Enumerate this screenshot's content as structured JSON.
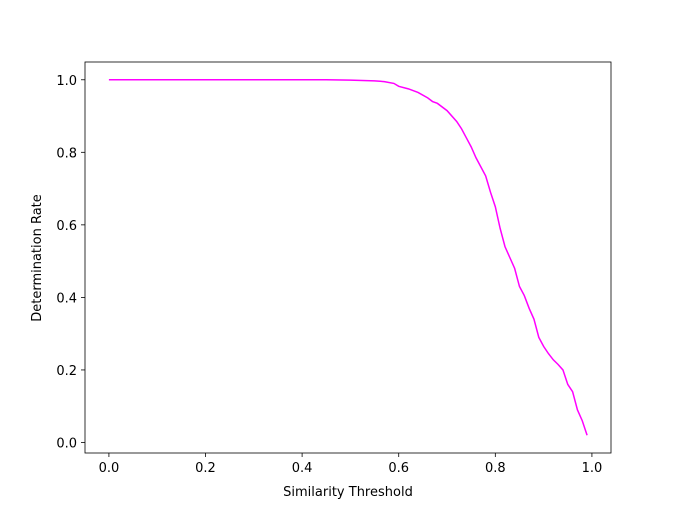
{
  "chart_data": {
    "type": "line",
    "x_label": "Similarity Threshold",
    "y_label": "Determination Rate",
    "x": [
      0.0,
      0.1,
      0.2,
      0.3,
      0.4,
      0.45,
      0.5,
      0.55,
      0.57,
      0.59,
      0.6,
      0.62,
      0.64,
      0.66,
      0.67,
      0.68,
      0.7,
      0.72,
      0.73,
      0.74,
      0.75,
      0.76,
      0.78,
      0.79,
      0.8,
      0.81,
      0.82,
      0.83,
      0.84,
      0.85,
      0.86,
      0.87,
      0.88,
      0.89,
      0.9,
      0.91,
      0.92,
      0.93,
      0.94,
      0.95,
      0.96,
      0.97,
      0.98,
      0.99
    ],
    "series": [
      {
        "color": "#ff00ff",
        "values": [
          1.0,
          1.0,
          1.0,
          1.0,
          1.0,
          1.0,
          0.999,
          0.997,
          0.995,
          0.99,
          0.982,
          0.975,
          0.965,
          0.95,
          0.94,
          0.935,
          0.915,
          0.885,
          0.865,
          0.84,
          0.815,
          0.785,
          0.735,
          0.69,
          0.65,
          0.59,
          0.54,
          0.51,
          0.48,
          0.43,
          0.405,
          0.37,
          0.34,
          0.29,
          0.265,
          0.245,
          0.228,
          0.215,
          0.2,
          0.16,
          0.14,
          0.09,
          0.06,
          0.02
        ]
      }
    ],
    "xlim": [
      -0.0495,
      1.0395
    ],
    "ylim": [
      -0.029,
      1.049
    ],
    "xticks": [
      {
        "value": 0,
        "label": "0.0"
      },
      0.2,
      0.4,
      0.6,
      0.8,
      {
        "value": 1,
        "label": "1.0"
      }
    ],
    "yticks": [
      {
        "value": 0,
        "label": "0.0"
      },
      0.2,
      0.4,
      0.6,
      0.8,
      {
        "value": 1,
        "label": "1.0"
      }
    ]
  }
}
